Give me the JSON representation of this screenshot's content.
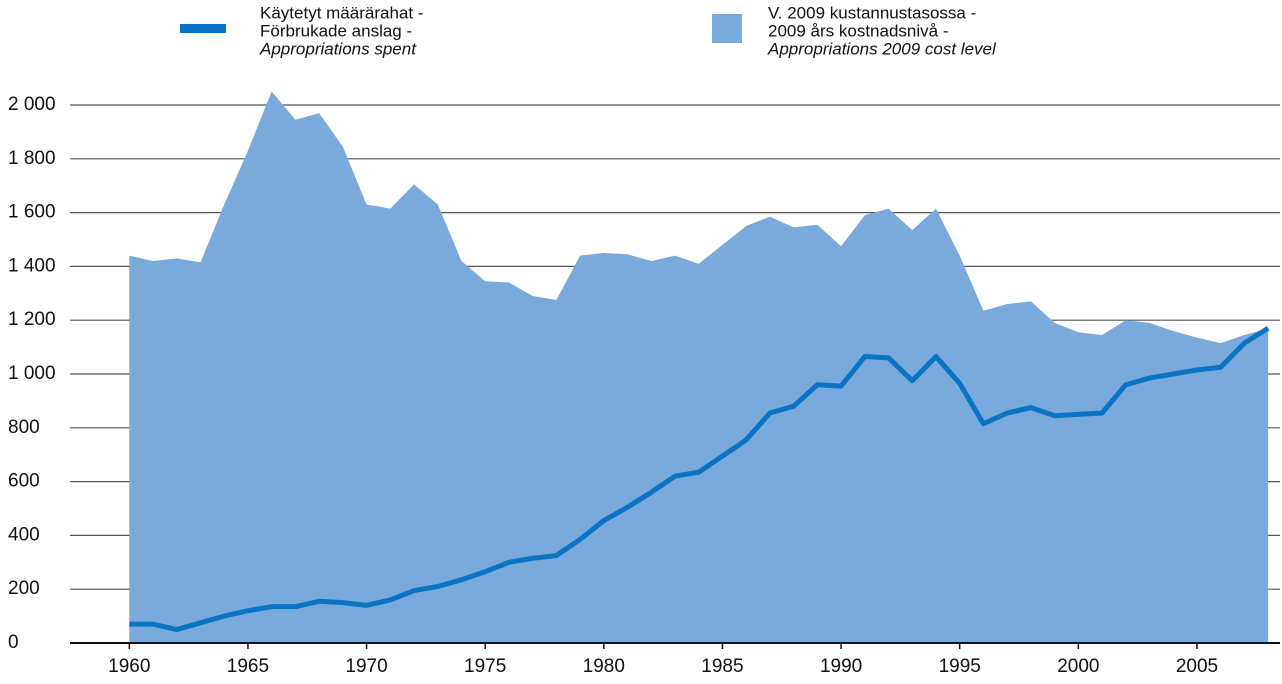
{
  "chart_data": {
    "type": "area_line",
    "x": [
      1960,
      1961,
      1962,
      1963,
      1964,
      1965,
      1966,
      1967,
      1968,
      1969,
      1970,
      1971,
      1972,
      1973,
      1974,
      1975,
      1976,
      1977,
      1978,
      1979,
      1980,
      1981,
      1982,
      1983,
      1984,
      1985,
      1986,
      1987,
      1988,
      1989,
      1990,
      1991,
      1992,
      1993,
      1994,
      1995,
      1996,
      1997,
      1998,
      1999,
      2000,
      2001,
      2002,
      2003,
      2004,
      2005,
      2006,
      2007,
      2008
    ],
    "series": [
      {
        "name": [
          "Käytetyt määrärahat -",
          "Förbrukade anslag -",
          "Appropriations spent"
        ],
        "type": "line",
        "color": "#0a74c4",
        "values": [
          70,
          70,
          50,
          75,
          100,
          120,
          135,
          135,
          155,
          150,
          140,
          160,
          195,
          210,
          235,
          265,
          300,
          315,
          325,
          385,
          455,
          505,
          560,
          620,
          635,
          695,
          755,
          855,
          880,
          960,
          955,
          1065,
          1060,
          975,
          1065,
          965,
          815,
          855,
          875,
          845,
          850,
          855,
          960,
          985,
          1000,
          1015,
          1025,
          1115,
          1170
        ]
      },
      {
        "name": [
          "V. 2009 kustannustasossa -",
          "2009 års kostnadsnivå -",
          "Appropriations 2009 cost level"
        ],
        "type": "area",
        "color": "#7aaadb",
        "values": [
          1440,
          1420,
          1430,
          1415,
          1630,
          1830,
          2050,
          1945,
          1970,
          1845,
          1630,
          1615,
          1705,
          1630,
          1420,
          1345,
          1340,
          1290,
          1275,
          1440,
          1450,
          1445,
          1420,
          1440,
          1410,
          1480,
          1550,
          1585,
          1545,
          1555,
          1475,
          1590,
          1615,
          1535,
          1615,
          1440,
          1235,
          1260,
          1270,
          1190,
          1155,
          1145,
          1200,
          1190,
          1160,
          1135,
          1115,
          1145,
          1170
        ]
      }
    ],
    "xlim": [
      1957.5,
      2008.5
    ],
    "xticks": [
      1960,
      1965,
      1970,
      1975,
      1980,
      1985,
      1990,
      1995,
      2000,
      2005
    ],
    "ylim": [
      0,
      2000
    ],
    "yticks": [
      0,
      200,
      400,
      600,
      800,
      {
        "value": 1000,
        "label": "1 000"
      },
      {
        "value": 1200,
        "label": "1 200"
      },
      {
        "value": 1400,
        "label": "1 400"
      },
      {
        "value": 1600,
        "label": "1 600"
      },
      {
        "value": 1800,
        "label": "1 800"
      },
      {
        "value": 2000,
        "label": "2 000"
      }
    ],
    "grid": true
  }
}
